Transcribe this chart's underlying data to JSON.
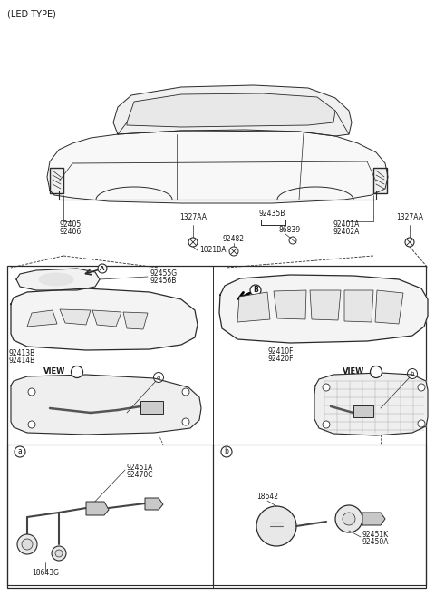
{
  "bg": "#ffffff",
  "lc": "#2a2a2a",
  "tc": "#1a1a1a",
  "figsize": [
    4.8,
    6.57
  ],
  "dpi": 100,
  "title": "(LED TYPE)",
  "labels": {
    "92405_92406": "92405\n92406",
    "1327AA_L": "1327AA",
    "1021BA": "1021BA",
    "92435B": "92435B",
    "86839": "86839",
    "92482": "92482",
    "92401A_92402A": "92401A\n92402A",
    "1327AA_R": "1327AA",
    "92455G_92456B": "92455G\n92456B",
    "92413B_92414B": "92413B\n92414B",
    "92410F_92420F": "92410F\n92420F",
    "92451A_92470C": "92451A\n92470C",
    "18643G": "18643G",
    "18642": "18642",
    "92451K_92450A": "92451K\n92450A"
  }
}
